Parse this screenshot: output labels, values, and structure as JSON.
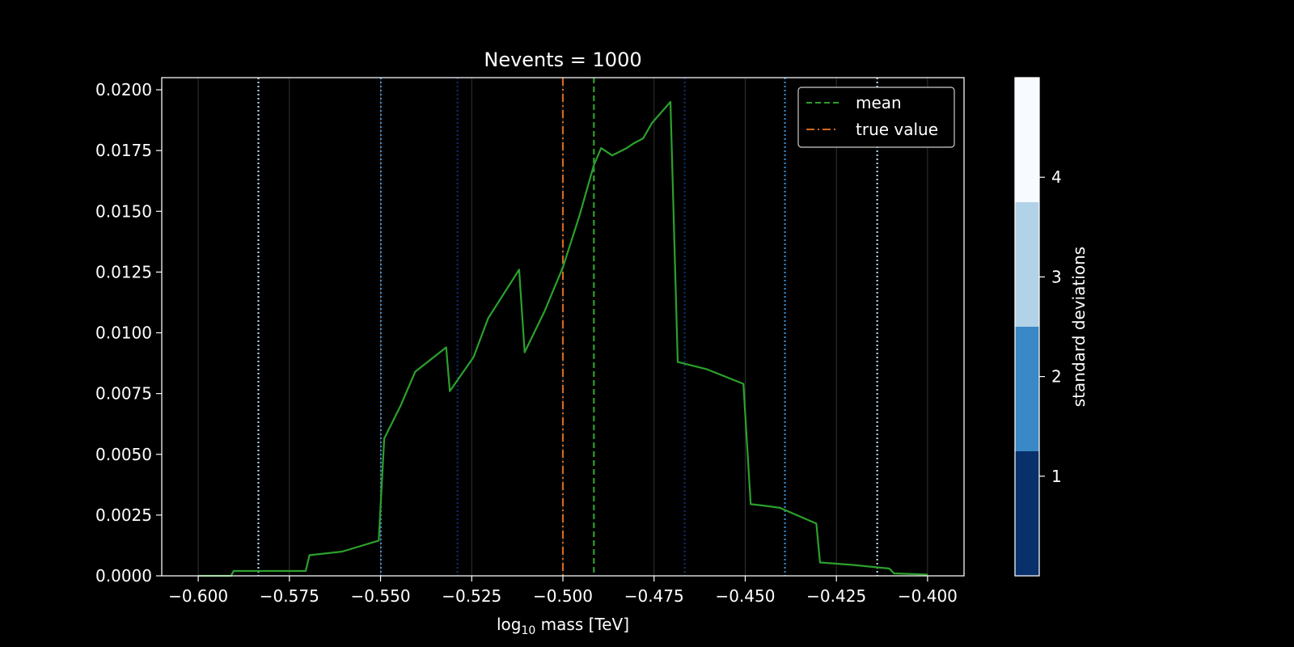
{
  "chart_data": {
    "type": "line",
    "title": "Nevents = 1000",
    "xlabel_pre": "log",
    "xlabel_sub": "10",
    "xlabel_post": " mass [TeV]",
    "ylabel": "",
    "xlim": [
      -0.61,
      -0.39
    ],
    "ylim": [
      0.0,
      0.0205
    ],
    "xticks": [
      -0.6,
      -0.575,
      -0.55,
      -0.525,
      -0.5,
      -0.475,
      -0.45,
      -0.425,
      -0.4
    ],
    "xtick_labels": [
      "−0.600",
      "−0.575",
      "−0.550",
      "−0.525",
      "−0.500",
      "−0.475",
      "−0.450",
      "−0.425",
      "−0.400"
    ],
    "yticks": [
      0.0,
      0.0025,
      0.005,
      0.0075,
      0.01,
      0.0125,
      0.015,
      0.0175,
      0.02
    ],
    "ytick_labels": [
      "0.0000",
      "0.0025",
      "0.0050",
      "0.0075",
      "0.0100",
      "0.0125",
      "0.0150",
      "0.0175",
      "0.0200"
    ],
    "grid_x": true,
    "series": [
      {
        "color": "#2ca02c",
        "x": [
          -0.6,
          -0.591,
          -0.5903,
          -0.5865,
          -0.581,
          -0.5705,
          -0.5695,
          -0.5605,
          -0.5505,
          -0.549,
          -0.5445,
          -0.5405,
          -0.532,
          -0.531,
          -0.5245,
          -0.5205,
          -0.512,
          -0.5105,
          -0.505,
          -0.5,
          -0.4955,
          -0.4915,
          -0.4895,
          -0.4865,
          -0.4825,
          -0.4805,
          -0.478,
          -0.4755,
          -0.4705,
          -0.4685,
          -0.4605,
          -0.4505,
          -0.4485,
          -0.4455,
          -0.4405,
          -0.4305,
          -0.4295,
          -0.4205,
          -0.4105,
          -0.4092,
          -0.4
        ],
        "y": [
          0.0,
          0.0,
          0.0002,
          0.0002,
          0.0002,
          0.0002,
          0.00085,
          0.001,
          0.00145,
          0.00565,
          0.007,
          0.0084,
          0.0094,
          0.0076,
          0.009,
          0.0106,
          0.0126,
          0.0092,
          0.0109,
          0.0127,
          0.0148,
          0.0169,
          0.0176,
          0.0173,
          0.0176,
          0.0178,
          0.018,
          0.01865,
          0.0195,
          0.0088,
          0.0085,
          0.0079,
          0.00295,
          0.0029,
          0.0028,
          0.00215,
          0.00055,
          0.00045,
          0.0003,
          0.0001,
          5e-05
        ]
      }
    ],
    "vlines": [
      {
        "name": "mean",
        "x": -0.4915,
        "color": "#2ca02c",
        "style": "dashed"
      },
      {
        "name": "true value",
        "x": -0.5,
        "color": "#d2691e",
        "style": "dashdot"
      },
      {
        "x": -0.5289,
        "color": "#08306b",
        "style": "dotted",
        "sigma": 1
      },
      {
        "x": -0.4666,
        "color": "#08306b",
        "style": "dotted",
        "sigma": 1
      },
      {
        "x": -0.5499,
        "color": "#3a88c6",
        "style": "dotted",
        "sigma": 2
      },
      {
        "x": -0.4391,
        "color": "#3a88c6",
        "style": "dotted",
        "sigma": 2
      },
      {
        "x": -0.5835,
        "color": "#b2d2e8",
        "style": "dotted",
        "sigma": 3
      },
      {
        "x": -0.4138,
        "color": "#b2d2e8",
        "style": "dotted",
        "sigma": 3
      }
    ],
    "legend": {
      "placement": "upper right",
      "entries": [
        {
          "label": "mean",
          "color": "#2ca02c",
          "style": "dashed"
        },
        {
          "label": "true value",
          "color": "#d2691e",
          "style": "dashdot"
        }
      ]
    },
    "colorbar": {
      "label": "standard deviations",
      "range": [
        0,
        5
      ],
      "bands": [
        {
          "from": 0,
          "to": 1.25,
          "color": "#08306b"
        },
        {
          "from": 1.25,
          "to": 2.5,
          "color": "#3a88c6"
        },
        {
          "from": 2.5,
          "to": 3.75,
          "color": "#b2d2e8"
        },
        {
          "from": 3.75,
          "to": 5,
          "color": "#f7fbff"
        }
      ],
      "ticks": [
        1,
        2,
        3,
        4
      ],
      "tick_labels": [
        "1",
        "2",
        "3",
        "4"
      ]
    }
  }
}
